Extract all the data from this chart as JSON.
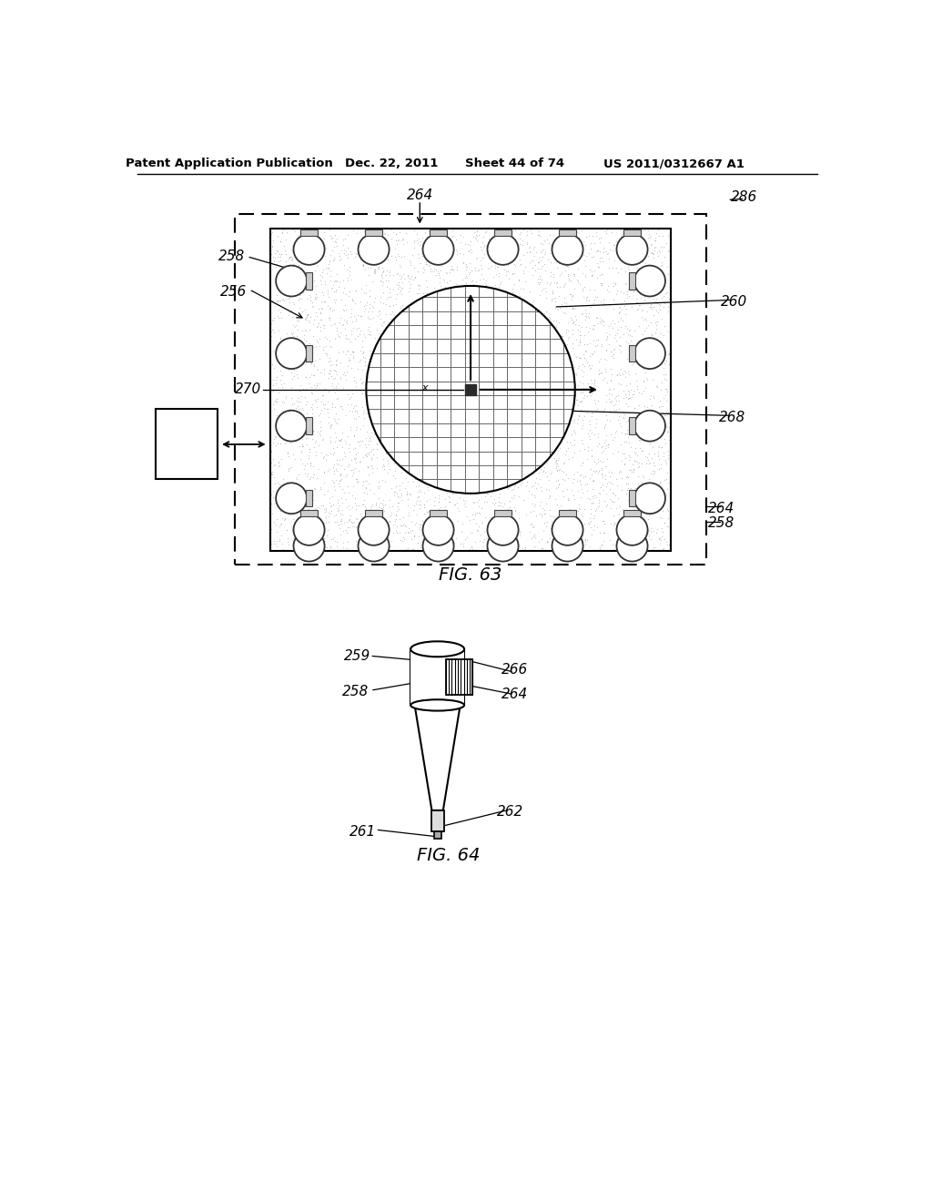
{
  "bg_color": "#ffffff",
  "header_text": "Patent Application Publication",
  "header_date": "Dec. 22, 2011",
  "header_sheet": "Sheet 44 of 74",
  "header_patent": "US 2011/0312667 A1",
  "fig63_label": "FIG. 63",
  "fig64_label": "FIG. 64"
}
